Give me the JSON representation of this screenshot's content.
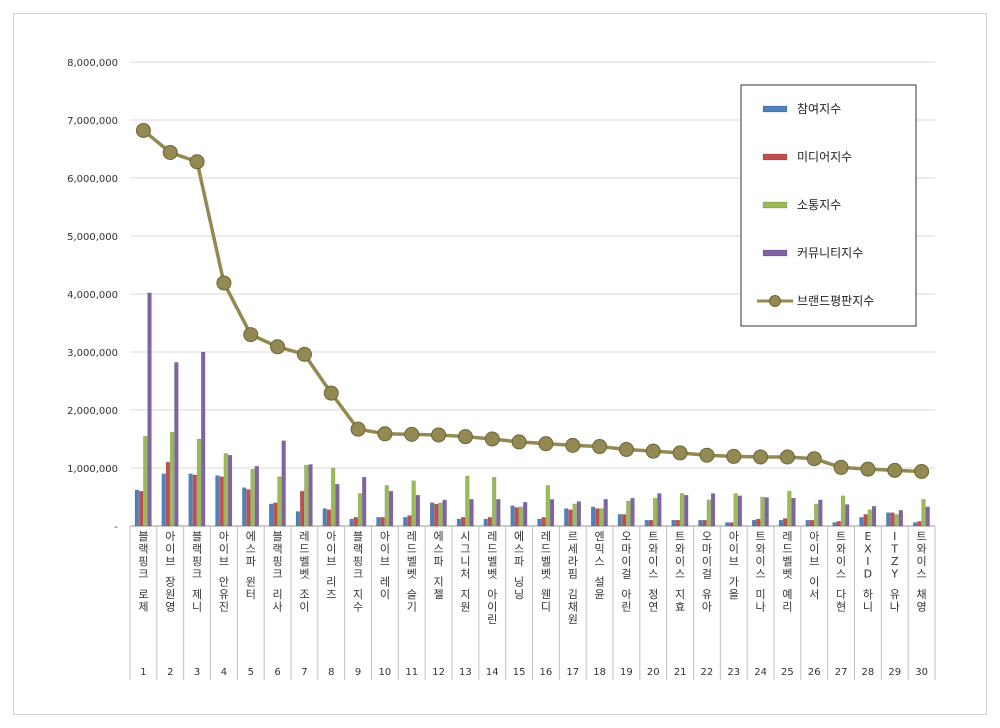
{
  "chart_data": {
    "type": "bar",
    "ylim": [
      0,
      8000000
    ],
    "yticks": [
      "8,000,000",
      "7,000,000",
      "6,000,000",
      "5,000,000",
      "4,000,000",
      "3,000,000",
      "2,000,000",
      "1,000,000",
      "-"
    ],
    "legend_position": "top-right",
    "grid": true,
    "categories": [
      {
        "num": "1",
        "name": "블랙핑크 로제"
      },
      {
        "num": "2",
        "name": "아이브 장원영"
      },
      {
        "num": "3",
        "name": "블랙핑크 제니"
      },
      {
        "num": "4",
        "name": "아이브 안유진"
      },
      {
        "num": "5",
        "name": "에스파 윈터"
      },
      {
        "num": "6",
        "name": "블랙핑크 리사"
      },
      {
        "num": "7",
        "name": "레드벨벳 조이"
      },
      {
        "num": "8",
        "name": "아이브 리즈"
      },
      {
        "num": "9",
        "name": "블랙핑크 지수"
      },
      {
        "num": "10",
        "name": "아이브 레이"
      },
      {
        "num": "11",
        "name": "레드벨벳 슬기"
      },
      {
        "num": "12",
        "name": "에스파 지젤"
      },
      {
        "num": "13",
        "name": "시그니처 지원"
      },
      {
        "num": "14",
        "name": "레드벨벳 아이린"
      },
      {
        "num": "15",
        "name": "에스파 닝닝"
      },
      {
        "num": "16",
        "name": "레드벨벳 웬디"
      },
      {
        "num": "17",
        "name": "르세라핌 김채원"
      },
      {
        "num": "18",
        "name": "엔믹스 설윤"
      },
      {
        "num": "19",
        "name": "오마이걸 아린"
      },
      {
        "num": "20",
        "name": "트와이스 정연"
      },
      {
        "num": "21",
        "name": "트와이스 지효"
      },
      {
        "num": "22",
        "name": "오마이걸 유아"
      },
      {
        "num": "23",
        "name": "아이브 가을"
      },
      {
        "num": "24",
        "name": "트와이스 미나"
      },
      {
        "num": "25",
        "name": "레드벨벳 예리"
      },
      {
        "num": "26",
        "name": "아이브 이서"
      },
      {
        "num": "27",
        "name": "트와이스 다현"
      },
      {
        "num": "28",
        "name": "EXID 하니"
      },
      {
        "num": "29",
        "name": "ITZY 유나"
      },
      {
        "num": "30",
        "name": "트와이스 채영"
      }
    ],
    "series": [
      {
        "name": "참여지수",
        "color": "#4f81bd",
        "kind": "bar",
        "values": [
          620000,
          900000,
          900000,
          870000,
          660000,
          380000,
          250000,
          300000,
          120000,
          150000,
          150000,
          400000,
          120000,
          120000,
          350000,
          120000,
          300000,
          330000,
          200000,
          100000,
          100000,
          100000,
          60000,
          100000,
          100000,
          100000,
          60000,
          150000,
          230000,
          60000
        ]
      },
      {
        "name": "미디어지수",
        "color": "#c0504d",
        "kind": "bar",
        "values": [
          600000,
          1100000,
          880000,
          850000,
          630000,
          400000,
          600000,
          280000,
          150000,
          150000,
          180000,
          380000,
          150000,
          150000,
          320000,
          150000,
          280000,
          300000,
          200000,
          100000,
          100000,
          100000,
          60000,
          120000,
          130000,
          100000,
          80000,
          200000,
          230000,
          80000
        ]
      },
      {
        "name": "소통지수",
        "color": "#9bbb59",
        "kind": "bar",
        "values": [
          1550000,
          1620000,
          1500000,
          1250000,
          980000,
          850000,
          1050000,
          1000000,
          560000,
          700000,
          780000,
          400000,
          860000,
          840000,
          330000,
          700000,
          380000,
          300000,
          430000,
          480000,
          560000,
          450000,
          560000,
          500000,
          600000,
          380000,
          520000,
          280000,
          200000,
          460000
        ]
      },
      {
        "name": "커뮤니티지수",
        "color": "#8064a2",
        "kind": "bar",
        "values": [
          4020000,
          2820000,
          3000000,
          1220000,
          1030000,
          1470000,
          1060000,
          720000,
          840000,
          600000,
          530000,
          450000,
          460000,
          460000,
          410000,
          460000,
          420000,
          460000,
          480000,
          560000,
          530000,
          560000,
          520000,
          490000,
          480000,
          450000,
          370000,
          340000,
          270000,
          330000
        ]
      },
      {
        "name": "브랜드평판지수",
        "color": "#938953",
        "kind": "line",
        "values": [
          6820000,
          6440000,
          6280000,
          4190000,
          3300000,
          3090000,
          2960000,
          2290000,
          1670000,
          1590000,
          1580000,
          1570000,
          1540000,
          1500000,
          1450000,
          1420000,
          1390000,
          1370000,
          1320000,
          1290000,
          1260000,
          1220000,
          1200000,
          1190000,
          1190000,
          1160000,
          1010000,
          980000,
          960000,
          940000
        ]
      }
    ]
  }
}
